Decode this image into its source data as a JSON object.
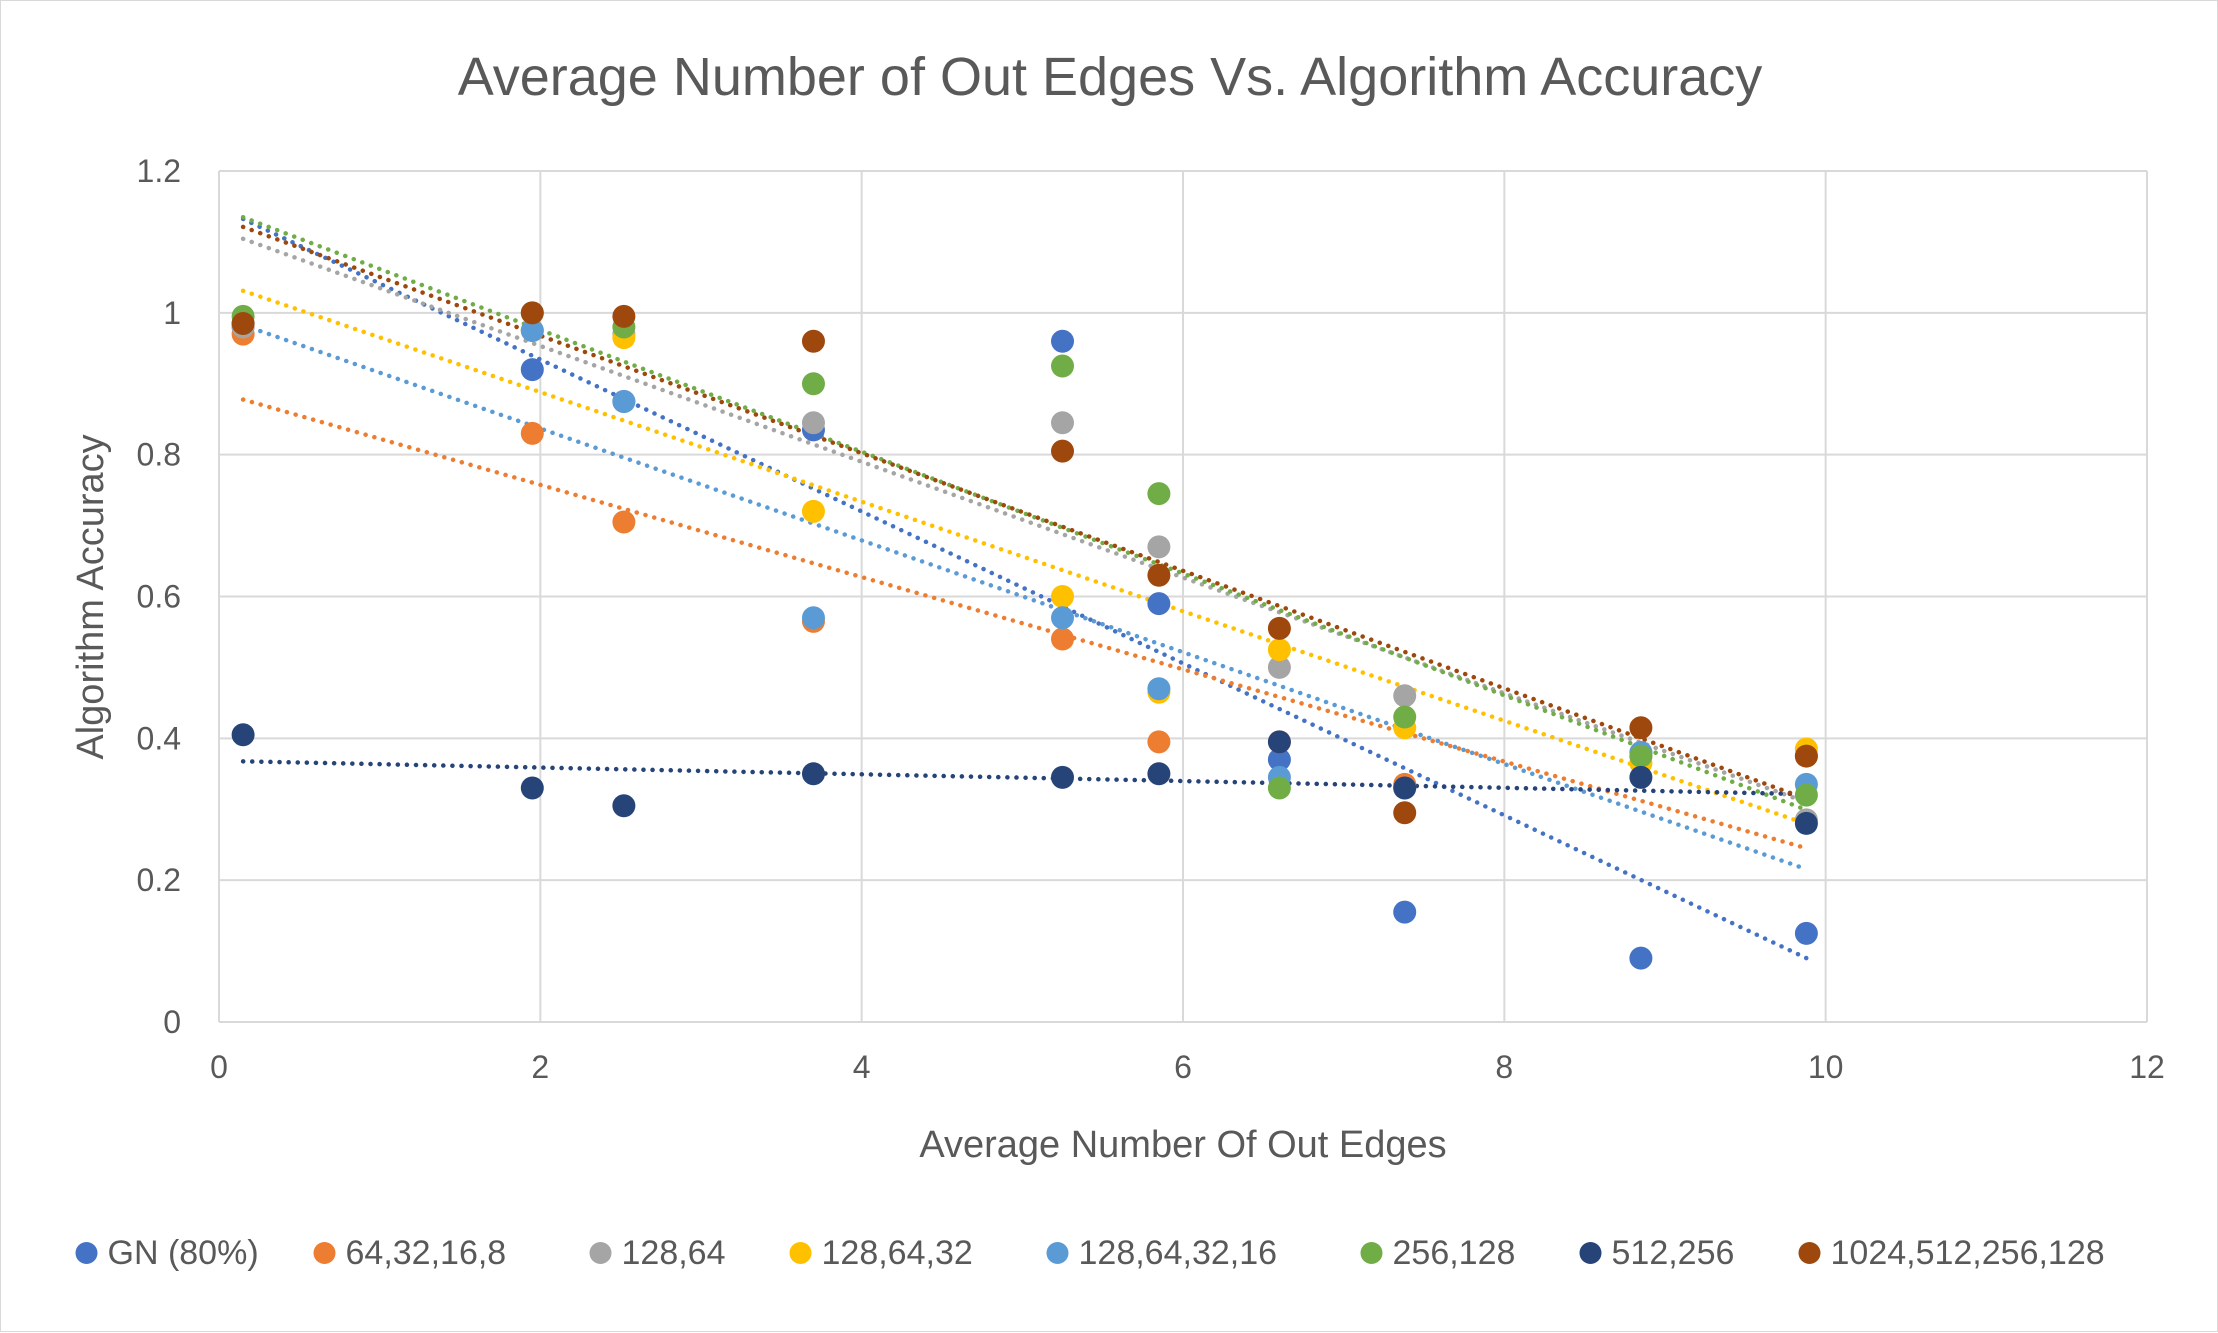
{
  "chart_data": {
    "type": "scatter",
    "title": "Average Number of Out Edges Vs. Algorithm Accuracy",
    "xlabel": "Average Number Of Out Edges",
    "ylabel": "Algorithm Accuracy",
    "xlim": [
      0,
      12
    ],
    "ylim": [
      0,
      1.2
    ],
    "xticks": [
      0,
      2,
      4,
      6,
      8,
      10,
      12
    ],
    "yticks": [
      0,
      0.2,
      0.4,
      0.6,
      0.8,
      1,
      1.2
    ],
    "grid": true,
    "legend_position": "bottom",
    "trendline": "linear, dotted",
    "series": [
      {
        "name": "GN (80%)",
        "color": "#4472C4",
        "x": [
          0.15,
          1.95,
          2.52,
          3.7,
          5.25,
          5.85,
          6.6,
          7.38,
          8.85,
          9.88
        ],
        "y": [
          0.98,
          0.92,
          0.875,
          0.835,
          0.96,
          0.59,
          0.37,
          0.155,
          0.09,
          0.125
        ]
      },
      {
        "name": "64,32,16,8",
        "color": "#ED7D31",
        "x": [
          0.15,
          1.95,
          2.52,
          3.7,
          5.25,
          5.85,
          6.6,
          7.38,
          8.85,
          9.88
        ],
        "y": [
          0.97,
          0.83,
          0.705,
          0.565,
          0.54,
          0.395,
          0.395,
          0.335,
          0.375,
          0.375
        ]
      },
      {
        "name": "128,64",
        "color": "#A5A5A5",
        "x": [
          0.15,
          1.95,
          2.52,
          3.7,
          5.25,
          5.85,
          6.6,
          7.38,
          8.85,
          9.88
        ],
        "y": [
          0.98,
          0.975,
          0.97,
          0.845,
          0.845,
          0.67,
          0.5,
          0.46,
          0.38,
          0.285
        ]
      },
      {
        "name": "128,64,32",
        "color": "#FFC000",
        "x": [
          0.15,
          1.95,
          2.52,
          3.7,
          5.25,
          5.85,
          6.6,
          7.38,
          8.85,
          9.88
        ],
        "y": [
          0.985,
          0.975,
          0.965,
          0.72,
          0.6,
          0.465,
          0.525,
          0.415,
          0.365,
          0.385
        ]
      },
      {
        "name": "128,64,32,16",
        "color": "#5B9BD5",
        "x": [
          0.15,
          1.95,
          2.52,
          3.7,
          5.25,
          5.85,
          6.6,
          7.38,
          8.85,
          9.88
        ],
        "y": [
          0.985,
          0.975,
          0.875,
          0.57,
          0.57,
          0.47,
          0.345,
          0.33,
          0.38,
          0.335
        ]
      },
      {
        "name": "256,128",
        "color": "#70AD47",
        "x": [
          0.15,
          1.95,
          2.52,
          3.7,
          5.25,
          5.85,
          6.6,
          7.38,
          8.85,
          9.88
        ],
        "y": [
          0.995,
          1.0,
          0.98,
          0.9,
          0.925,
          0.745,
          0.33,
          0.43,
          0.375,
          0.32
        ]
      },
      {
        "name": "512,256",
        "color": "#264478",
        "x": [
          0.15,
          1.95,
          2.52,
          3.7,
          5.25,
          5.85,
          6.6,
          7.38,
          8.85,
          9.88
        ],
        "y": [
          0.405,
          0.33,
          0.305,
          0.35,
          0.345,
          0.35,
          0.395,
          0.33,
          0.345,
          0.28
        ]
      },
      {
        "name": "1024,512,256,128",
        "color": "#9E480E",
        "x": [
          0.15,
          1.95,
          2.52,
          3.7,
          5.25,
          5.85,
          6.6,
          7.38,
          8.85,
          9.88
        ],
        "y": [
          0.985,
          1.0,
          0.995,
          0.96,
          0.805,
          0.63,
          0.555,
          0.295,
          0.415,
          0.375
        ]
      }
    ]
  }
}
